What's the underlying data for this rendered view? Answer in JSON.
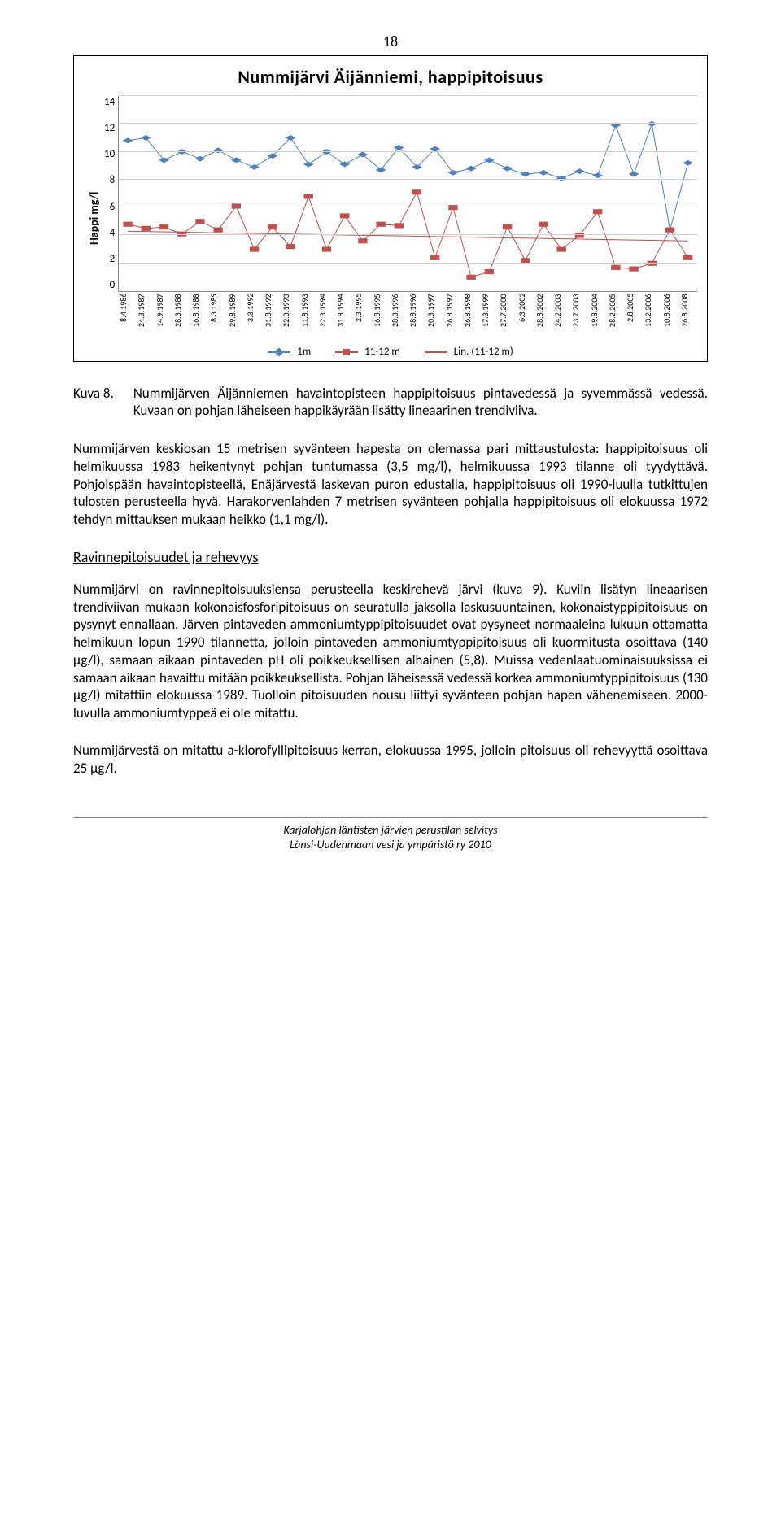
{
  "page_number": "18",
  "chart": {
    "type": "line",
    "title": "Nummijärvi Äijänniemi, happipitoisuus",
    "y_label": "Happi mg/l",
    "ylim": [
      0,
      14
    ],
    "ytick_step": 2,
    "yticks": [
      "14",
      "12",
      "10",
      "8",
      "6",
      "4",
      "2",
      "0"
    ],
    "grid_color": "#d0d0d0",
    "axis_color": "#888888",
    "background_color": "#ffffff",
    "title_fontsize": 22,
    "label_fontsize": 14,
    "tick_fontsize": 10,
    "line_width": 2,
    "marker_size": 7,
    "categories": [
      "8.4.1986",
      "24.3.1987",
      "14.9.1987",
      "28.3.1988",
      "16.8.1988",
      "8.3.1989",
      "29.8.1989",
      "3.3.1992",
      "31.8.1992",
      "22.3.1993",
      "11.8.1993",
      "22.3.1994",
      "31.8.1994",
      "2.3.1995",
      "16.8.1995",
      "28.3.1996",
      "28.8.1996",
      "20.3.1997",
      "26.8.1997",
      "26.8.1998",
      "17.3.1999",
      "27.7.2000",
      "6.3.2002",
      "28.8.2002",
      "24.2.2003",
      "23.7.2003",
      "19.8.2004",
      "28.2.2005",
      "2.8.2005",
      "13.2.2006",
      "10.8.2006",
      "26.8.2008"
    ],
    "series": [
      {
        "name": "1m",
        "color": "#4f81bd",
        "marker": "diamond",
        "values": [
          10.8,
          11.0,
          9.4,
          10.0,
          9.5,
          10.1,
          9.4,
          8.9,
          9.7,
          11.0,
          9.1,
          10.0,
          9.1,
          9.8,
          8.7,
          10.3,
          8.9,
          10.2,
          8.5,
          8.8,
          9.4,
          8.8,
          8.4,
          8.5,
          8.1,
          8.6,
          8.3,
          11.9,
          8.4,
          12.0,
          4.4,
          9.2
        ]
      },
      {
        "name": "11-12 m",
        "color": "#c0504d",
        "marker": "square",
        "values": [
          4.8,
          4.5,
          4.6,
          4.1,
          5.0,
          4.4,
          6.1,
          3.0,
          4.6,
          3.2,
          6.8,
          3.0,
          5.4,
          3.6,
          4.8,
          4.7,
          7.1,
          2.4,
          6.0,
          1.0,
          1.4,
          4.6,
          2.2,
          4.8,
          3.0,
          4.0,
          5.7,
          1.7,
          1.6,
          2.0,
          4.4,
          2.4
        ]
      }
    ],
    "trend": {
      "name": "Lin. (11-12 m)",
      "color": "#c0504d",
      "dash": "solid",
      "y_start": 4.3,
      "y_end": 3.6
    },
    "legend_items": [
      "1m",
      "11-12 m",
      "Lin. (11-12 m)"
    ]
  },
  "caption": {
    "label": "Kuva 8.",
    "text": "Nummijärven Äijänniemen havaintopisteen happipitoisuus pintavedessä ja syvemmässä vedessä. Kuvaan on pohjan läheiseen happikäyrään lisätty lineaarinen trendiviiva."
  },
  "paragraphs": [
    "Nummijärven keskiosan 15 metrisen syvänteen hapesta on olemassa pari mittaustulosta: happipitoisuus oli helmikuussa 1983 heikentynyt pohjan tuntumassa (3,5 mg/l), helmikuussa 1993 tilanne oli tyydyttävä. Pohjoispään havaintopisteellä, Enäjärvestä laskevan puron edustalla, happipitoisuus oli 1990-luulla tutkittujen tulosten perusteella hyvä. Harakorvenlahden 7 metrisen syvänteen pohjalla happipitoisuus oli elokuussa 1972 tehdyn mittauksen mukaan heikko (1,1 mg/l)."
  ],
  "section_head": "Ravinnepitoisuudet ja rehevyys",
  "paragraphs2": [
    "Nummijärvi on ravinnepitoisuuksiensa perusteella keskirehevä järvi (kuva 9). Kuviin lisätyn lineaarisen trendiviivan mukaan kokonaisfosforipitoisuus on seuratulla jaksolla laskusuuntainen, kokonaistyppipitoisuus on pysynyt ennallaan. Järven pintaveden ammoniumtyppipitoisuudet ovat pysyneet normaaleina lukuun ottamatta helmikuun lopun 1990 tilannetta, jolloin pintaveden ammoniumtyppipitoisuus oli kuormitusta osoittava (140 µg/l), samaan aikaan pintaveden pH oli poikkeuksellisen alhainen (5,8). Muissa vedenlaatuominaisuuksissa ei samaan aikaan havaittu mitään poikkeuksellista. Pohjan läheisessä vedessä korkea ammoniumtyppipitoisuus (130 µg/l) mitattiin elokuussa 1989. Tuolloin pitoisuuden nousu liittyi syvänteen pohjan hapen vähenemiseen. 2000-luvulla ammoniumtyppeä ei ole mitattu.",
    "Nummijärvestä on mitattu a-klorofyllipitoisuus kerran, elokuussa 1995, jolloin pitoisuus oli rehevyyttä osoittava 25 µg/l."
  ],
  "footer": {
    "line1": "Karjalohjan läntisten järvien perustilan selvitys",
    "line2": "Länsi-Uudenmaan vesi ja ympäristö ry 2010"
  }
}
